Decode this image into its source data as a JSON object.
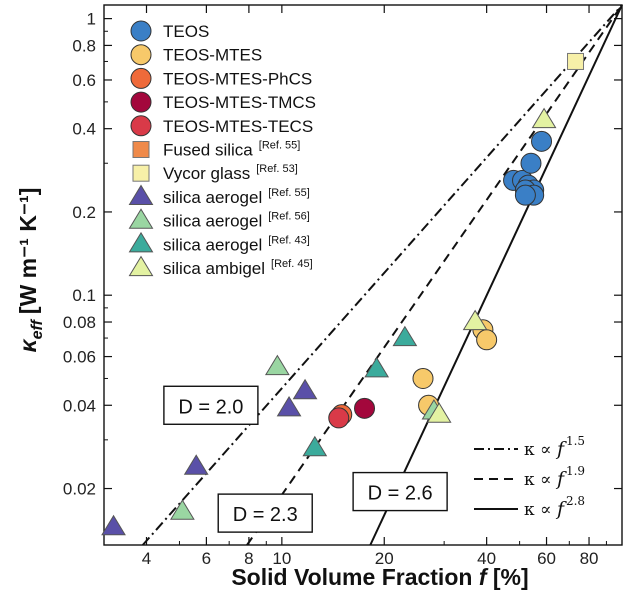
{
  "chart_data": {
    "type": "scatter",
    "title": "",
    "xlabel": "Solid Volume Fraction f [%]",
    "xlabel_parts": {
      "main": "Solid Volume Fraction ",
      "var": "f",
      "unit": " [%]"
    },
    "ylabel_parts": {
      "var": "κ",
      "sub": "eff",
      "unit": "[W m⁻¹ K⁻¹]"
    },
    "x_scale": "log",
    "y_scale": "log",
    "xlim": [
      3.0,
      100
    ],
    "ylim": [
      0.0125,
      1.12
    ],
    "xticks": [
      4,
      6,
      8,
      10,
      20,
      40,
      60,
      80
    ],
    "xtick_labels": [
      "4",
      "6",
      "8",
      "10",
      "20",
      "40",
      "60",
      "80"
    ],
    "yticks": [
      0.02,
      0.04,
      0.06,
      0.08,
      0.1,
      0.2,
      0.4,
      0.6,
      0.8,
      1
    ],
    "ytick_labels": [
      "0.02",
      "0.04",
      "0.06",
      "0.08",
      "0.1",
      "0.2",
      "0.4",
      "0.6",
      "0.8",
      "1"
    ],
    "grid": false,
    "legend_position": "top-left",
    "series": [
      {
        "name": "TEOS",
        "ref": "",
        "marker": "circle",
        "color": "#3a7fc6",
        "points": [
          [
            48,
            0.26
          ],
          [
            51,
            0.26
          ],
          [
            53,
            0.25
          ],
          [
            55,
            0.24
          ],
          [
            52,
            0.24
          ],
          [
            55,
            0.23
          ],
          [
            52,
            0.23
          ],
          [
            54,
            0.3
          ],
          [
            58,
            0.36
          ]
        ]
      },
      {
        "name": "TEOS-MTES",
        "ref": "",
        "marker": "circle",
        "color": "#f7c96a",
        "points": [
          [
            26,
            0.05
          ],
          [
            27,
            0.04
          ],
          [
            39,
            0.075
          ],
          [
            40,
            0.069
          ]
        ]
      },
      {
        "name": "TEOS-MTES-PhCS",
        "ref": "",
        "marker": "circle",
        "color": "#ef6a3a",
        "points": [
          [
            15,
            0.037
          ]
        ]
      },
      {
        "name": "TEOS-MTES-TMCS",
        "ref": "",
        "marker": "circle",
        "color": "#a3073c",
        "points": [
          [
            17.5,
            0.039
          ]
        ]
      },
      {
        "name": "TEOS-MTES-TECS",
        "ref": "",
        "marker": "circle",
        "color": "#d93a48",
        "points": [
          [
            14.7,
            0.036
          ]
        ]
      },
      {
        "name": "Fused silica",
        "ref": "[Ref. 55]",
        "marker": "square",
        "color": "#ef8a4a",
        "points": []
      },
      {
        "name": "Vycor glass",
        "ref": "[Ref. 53]",
        "marker": "square",
        "color": "#f7f0a8",
        "points": [
          [
            73,
            0.7
          ]
        ]
      },
      {
        "name": "silica aerogel",
        "ref": "[Ref. 55]",
        "marker": "triangle",
        "color": "#5a50a8",
        "points": [
          [
            3.2,
            0.0145
          ],
          [
            5.6,
            0.024
          ],
          [
            10.5,
            0.039
          ],
          [
            11.7,
            0.045
          ]
        ]
      },
      {
        "name": "silica aerogel",
        "ref": "[Ref. 56]",
        "marker": "triangle",
        "color": "#9ad6a2",
        "points": [
          [
            5.1,
            0.0165
          ],
          [
            9.7,
            0.055
          ],
          [
            28,
            0.038
          ]
        ]
      },
      {
        "name": "silica aerogel",
        "ref": "[Ref. 43]",
        "marker": "triangle",
        "color": "#3bab9c",
        "points": [
          [
            12.5,
            0.028
          ],
          [
            19,
            0.054
          ],
          [
            23,
            0.07
          ]
        ]
      },
      {
        "name": "silica ambigel",
        "ref": "[Ref. 45]",
        "marker": "triangle",
        "color": "#e3f2a2",
        "points": [
          [
            29,
            0.037
          ],
          [
            37,
            0.08
          ],
          [
            59,
            0.43
          ]
        ]
      }
    ],
    "fit_lines": [
      {
        "label_prefix": "κ ∝ ",
        "var": "f",
        "exponent": "1.5",
        "style": "dashdot",
        "from": [
          3.9,
          0.0125
        ],
        "to": [
          100,
          1.12
        ]
      },
      {
        "label_prefix": "κ ∝ ",
        "var": "f",
        "exponent": "1.9",
        "style": "dashed",
        "from": [
          7.9,
          0.0125
        ],
        "to": [
          100,
          1.12
        ]
      },
      {
        "label_prefix": "κ ∝ ",
        "var": "f",
        "exponent": "2.8",
        "style": "solid",
        "from": [
          18.2,
          0.0125
        ],
        "to": [
          100,
          1.12
        ]
      }
    ],
    "annotations": [
      {
        "text": "D = 2.0",
        "x": 4.5,
        "y": 0.04
      },
      {
        "text": "D = 2.3",
        "x": 6.5,
        "y": 0.0163
      },
      {
        "text": "D = 2.6",
        "x": 16.2,
        "y": 0.0195
      }
    ]
  }
}
